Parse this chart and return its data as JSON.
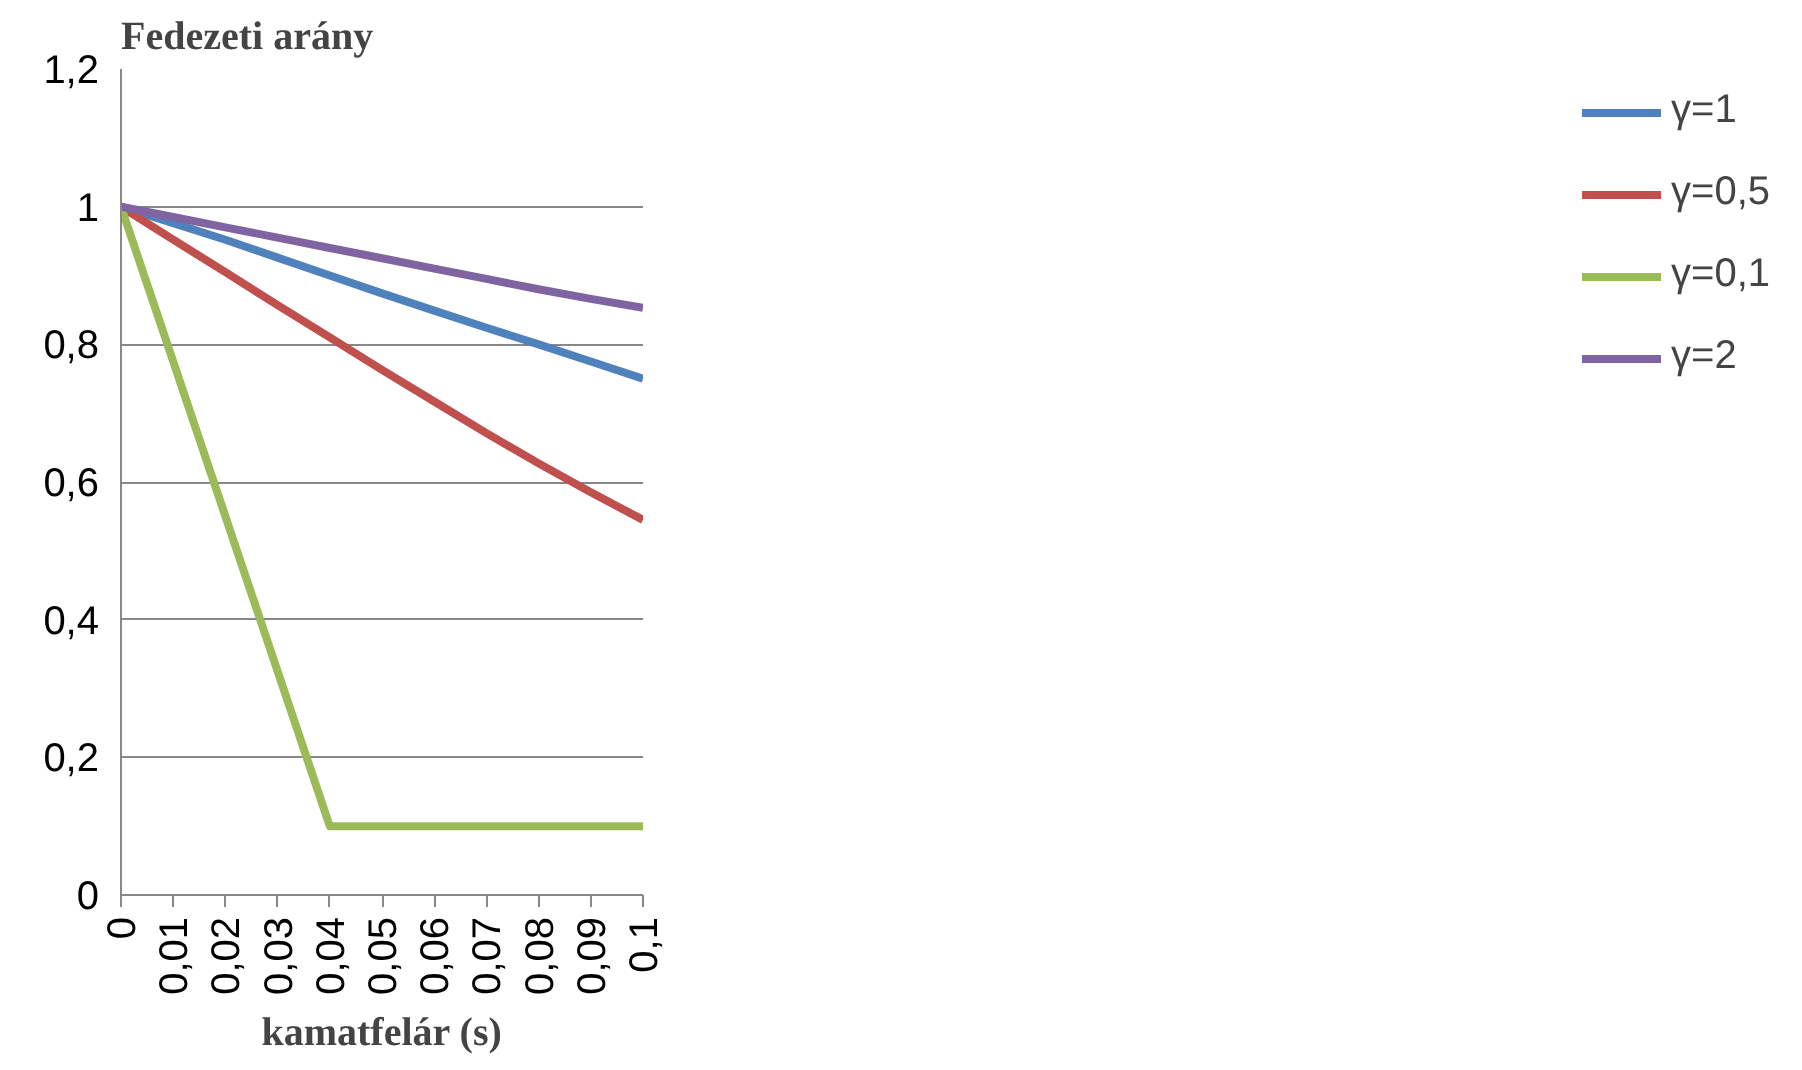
{
  "chart_data": {
    "type": "line",
    "xlabel": "kamatfelár (s)",
    "ylabel": "Fedezeti arány",
    "x": [
      0,
      0.01,
      0.02,
      0.03,
      0.04,
      0.05,
      0.06,
      0.07,
      0.08,
      0.09,
      0.1
    ],
    "series": [
      {
        "name": "γ=1",
        "color": "#4f81bd",
        "values": [
          1,
          0.976,
          0.952,
          0.926,
          0.9,
          0.874,
          0.849,
          0.824,
          0.8,
          0.775,
          0.75
        ]
      },
      {
        "name": "γ=0,5",
        "color": "#c0504d",
        "values": [
          1,
          0.952,
          0.905,
          0.857,
          0.81,
          0.763,
          0.717,
          0.671,
          0.627,
          0.585,
          0.545
        ]
      },
      {
        "name": "γ=0,1",
        "color": "#9bbb59",
        "values": [
          1,
          0.775,
          0.55,
          0.325,
          0.1,
          0.1,
          0.1,
          0.1,
          0.1,
          0.1,
          0.1
        ]
      },
      {
        "name": "γ=2",
        "color": "#8064a2",
        "values": [
          1,
          0.985,
          0.97,
          0.955,
          0.94,
          0.925,
          0.91,
          0.895,
          0.88,
          0.866,
          0.853
        ]
      }
    ],
    "xlim": [
      0,
      0.1
    ],
    "ylim": [
      0,
      1.2
    ],
    "xticks": [
      {
        "value": 0,
        "label": "0"
      },
      {
        "value": 0.01,
        "label": "0,01"
      },
      {
        "value": 0.02,
        "label": "0,02"
      },
      {
        "value": 0.03,
        "label": "0,03"
      },
      {
        "value": 0.04,
        "label": "0,04"
      },
      {
        "value": 0.05,
        "label": "0,05"
      },
      {
        "value": 0.06,
        "label": "0,06"
      },
      {
        "value": 0.07,
        "label": "0,07"
      },
      {
        "value": 0.08,
        "label": "0,08"
      },
      {
        "value": 0.09,
        "label": "0,09"
      },
      {
        "value": 0.1,
        "label": "0,1"
      }
    ],
    "yticks": [
      0,
      {
        "value": 0.2,
        "label": "0,2"
      },
      {
        "value": 0.4,
        "label": "0,4"
      },
      {
        "value": 0.6,
        "label": "0,6"
      },
      {
        "value": 0.8,
        "label": "0,8"
      },
      1,
      {
        "value": 1.2,
        "label": "1,2"
      }
    ],
    "grid": "y",
    "legend": "right",
    "marker": "none",
    "line_style": "solid"
  }
}
